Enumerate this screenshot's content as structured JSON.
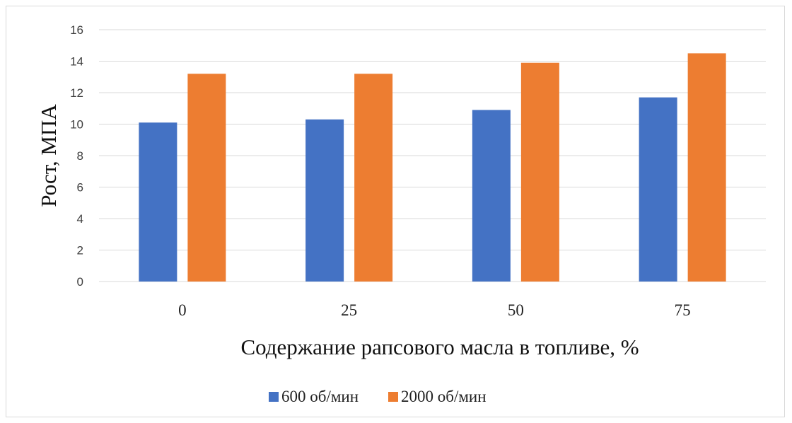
{
  "chart_data": {
    "type": "bar",
    "title": "",
    "categories": [
      "0",
      "25",
      "50",
      "75"
    ],
    "series": [
      {
        "name": "600 об/мин",
        "values": [
          10.1,
          10.3,
          10.9,
          11.7
        ],
        "color": "#4472C4"
      },
      {
        "name": "2000 об/мин",
        "values": [
          13.2,
          13.2,
          13.9,
          14.5
        ],
        "color": "#ED7D31"
      }
    ],
    "xlabel": "Содержание рапсового масла в топливе, %",
    "ylabel": "Рост, МПА",
    "ylim": [
      0,
      16
    ],
    "yticks": [
      "0",
      "2",
      "4",
      "6",
      "8",
      "10",
      "12",
      "14",
      "16"
    ],
    "grid": true,
    "legend": "bottom",
    "gridcolor": "#d9d9d9"
  }
}
